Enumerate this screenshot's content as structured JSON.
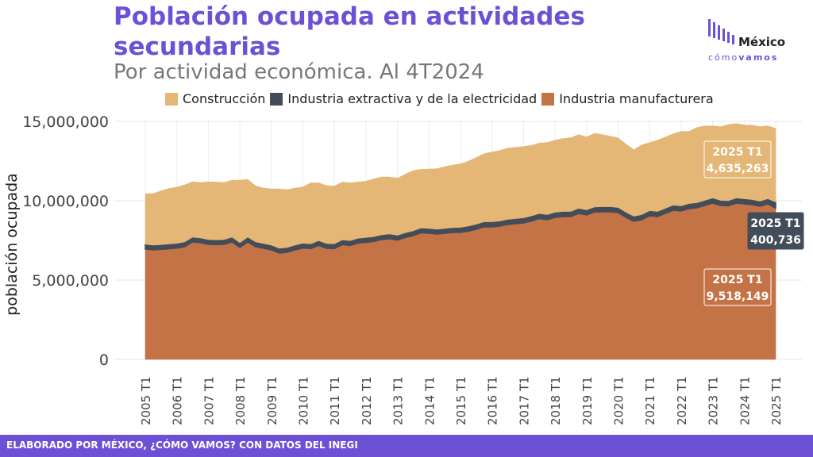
{
  "title": "Población ocupada en actividades secundarias",
  "subtitle": "Por actividad económica. Al 4T2024",
  "logo": {
    "line1": "México",
    "line2a": "cómo",
    "line2b": "vamos"
  },
  "footer": "ELABORADO POR MÉXICO, ¿CÓMO VAMOS? CON DATOS DEL INEGI",
  "colors": {
    "construccion": "#e5b777",
    "extractiva": "#434c59",
    "manufactura": "#c47347",
    "accent": "#6c51d6"
  },
  "chart_data": {
    "type": "area",
    "stacked": true,
    "xlabel": "",
    "ylabel": "población ocupada",
    "ylim": [
      0,
      15500000
    ],
    "yticks": [
      0,
      5000000,
      10000000,
      15000000
    ],
    "ytick_labels": [
      "0",
      "5,000,000",
      "10,000,000",
      "15,000,000"
    ],
    "xtick_labels": [
      "2005 T1",
      "2006 T1",
      "2007 T1",
      "2008 T1",
      "2009 T1",
      "2010 T1",
      "2011 T1",
      "2012 T1",
      "2013 T1",
      "2014 T1",
      "2015 T1",
      "2016 T1",
      "2017 T1",
      "2018 T1",
      "2019 T1",
      "2020 T1",
      "2021 T1",
      "2022 T1",
      "2023 T1",
      "2024 T1",
      "2025 T1"
    ],
    "legend_position": "top",
    "grid": true,
    "quarters_per_year": 4,
    "series": [
      {
        "name": "Industria manufacturera",
        "key": "manufactura",
        "values": [
          6950000,
          6900000,
          6930000,
          6970000,
          7010000,
          7100000,
          7400000,
          7350000,
          7250000,
          7230000,
          7250000,
          7400000,
          7050000,
          7400000,
          7100000,
          7000000,
          6900000,
          6700000,
          6750000,
          6900000,
          7020000,
          6980000,
          7180000,
          7000000,
          6980000,
          7230000,
          7180000,
          7330000,
          7380000,
          7430000,
          7550000,
          7600000,
          7520000,
          7680000,
          7800000,
          7980000,
          7950000,
          7900000,
          7950000,
          8000000,
          8000000,
          8080000,
          8200000,
          8350000,
          8350000,
          8400000,
          8500000,
          8550000,
          8600000,
          8720000,
          8870000,
          8800000,
          8950000,
          9000000,
          9000000,
          9200000,
          9100000,
          9280000,
          9300000,
          9300000,
          9250000,
          8950000,
          8700000,
          8800000,
          9050000,
          9000000,
          9200000,
          9400000,
          9350000,
          9500000,
          9550000,
          9700000,
          9850000,
          9700000,
          9680000,
          9850000,
          9800000,
          9750000,
          9650000,
          9800000,
          9518149
        ]
      },
      {
        "name": "Industria extractiva y de la electricidad",
        "key": "extractiva",
        "values": [
          300000,
          300000,
          300000,
          300000,
          300000,
          300000,
          300000,
          300000,
          300000,
          300000,
          300000,
          300000,
          300000,
          300000,
          300000,
          300000,
          300000,
          300000,
          300000,
          300000,
          300000,
          300000,
          300000,
          300000,
          300000,
          300000,
          300000,
          300000,
          300000,
          300000,
          300000,
          300000,
          300000,
          300000,
          300000,
          300000,
          300000,
          300000,
          300000,
          300000,
          320000,
          320000,
          320000,
          320000,
          320000,
          320000,
          320000,
          320000,
          320000,
          320000,
          320000,
          320000,
          320000,
          320000,
          320000,
          320000,
          320000,
          320000,
          320000,
          320000,
          320000,
          320000,
          320000,
          320000,
          320000,
          320000,
          320000,
          320000,
          320000,
          320000,
          320000,
          320000,
          320000,
          320000,
          320000,
          320000,
          320000,
          320000,
          320000,
          320000,
          400736
        ]
      },
      {
        "name": "Construcción",
        "key": "construccion",
        "values": [
          3200000,
          3250000,
          3400000,
          3500000,
          3550000,
          3600000,
          3500000,
          3500000,
          3650000,
          3650000,
          3600000,
          3600000,
          3950000,
          3650000,
          3550000,
          3500000,
          3550000,
          3750000,
          3650000,
          3600000,
          3550000,
          3850000,
          3650000,
          3650000,
          3650000,
          3650000,
          3650000,
          3550000,
          3550000,
          3650000,
          3650000,
          3600000,
          3600000,
          3700000,
          3800000,
          3700000,
          3750000,
          3820000,
          3900000,
          3950000,
          4000000,
          4100000,
          4200000,
          4300000,
          4400000,
          4450000,
          4500000,
          4500000,
          4500000,
          4450000,
          4450000,
          4550000,
          4550000,
          4600000,
          4650000,
          4650000,
          4600000,
          4650000,
          4550000,
          4450000,
          4400000,
          4300000,
          4200000,
          4400000,
          4300000,
          4500000,
          4500000,
          4500000,
          4700000,
          4550000,
          4750000,
          4700000,
          4550000,
          4650000,
          4800000,
          4700000,
          4650000,
          4700000,
          4700000,
          4600000,
          4635263
        ]
      }
    ],
    "annotations": [
      {
        "series": "Construcción",
        "line1": "2025 T1",
        "line2": "4,635,263"
      },
      {
        "series": "Industria extractiva y de la electricidad",
        "line1": "2025 T1",
        "line2": "400,736"
      },
      {
        "series": "Industria manufacturera",
        "line1": "2025 T1",
        "line2": "9,518,149"
      }
    ]
  }
}
